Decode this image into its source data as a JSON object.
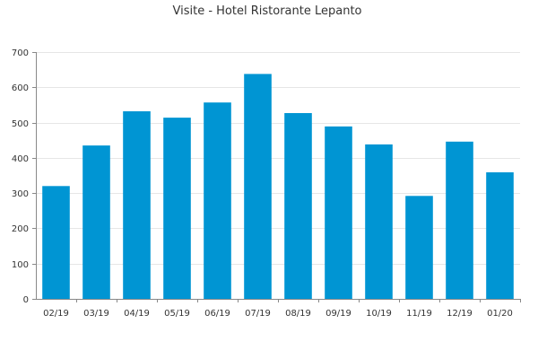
{
  "chart_data": {
    "type": "bar",
    "title": "Visite - Hotel Ristorante Lepanto",
    "xlabel": "",
    "ylabel": "",
    "categories": [
      "02/19",
      "03/19",
      "04/19",
      "05/19",
      "06/19",
      "07/19",
      "08/19",
      "09/19",
      "10/19",
      "11/19",
      "12/19",
      "01/20"
    ],
    "values": [
      320,
      435,
      532,
      514,
      557,
      638,
      527,
      489,
      438,
      292,
      446,
      359
    ],
    "ylim": [
      0,
      700
    ],
    "yticks": [
      0,
      100,
      200,
      300,
      400,
      500,
      600,
      700
    ],
    "grid": true,
    "bar_color": "#0095d3"
  }
}
